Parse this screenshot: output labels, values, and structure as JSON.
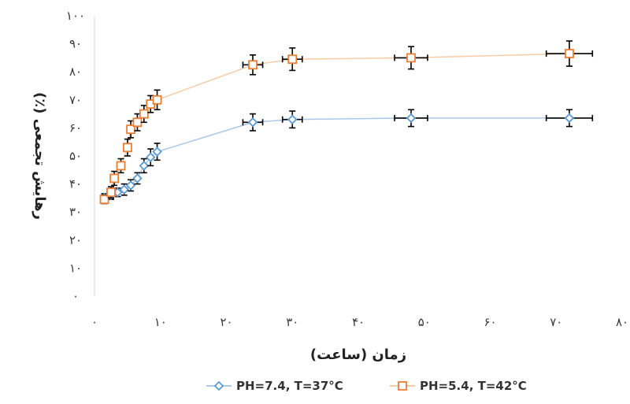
{
  "chart_data": {
    "type": "scatter",
    "xlabel": "زمان (ساعت)",
    "ylabel": "رهایش تجمعی (٪)",
    "xlim": [
      0,
      80
    ],
    "ylim": [
      0,
      100
    ],
    "x_ticks": [
      0,
      10,
      20,
      30,
      40,
      50,
      60,
      70,
      80
    ],
    "y_ticks": [
      0,
      10,
      20,
      30,
      40,
      50,
      60,
      70,
      80,
      90,
      100
    ],
    "x_tick_labels": [
      "۰",
      "۱۰",
      "۲۰",
      "۳۰",
      "۴۰",
      "۵۰",
      "۶۰",
      "۷۰",
      "۸۰"
    ],
    "y_tick_labels": [
      "۰",
      "۱۰",
      "۲۰",
      "۳۰",
      "۴۰",
      "۵۰",
      "۶۰",
      "۷۰",
      "۸۰",
      "۹۰",
      "۱۰۰"
    ],
    "grid": false,
    "legend_position": "bottom",
    "series": [
      {
        "name": "PH=7.4, T=37°C",
        "color": "#5b9bd5",
        "line_color": "#a9c8ea",
        "marker": "diamond",
        "x": [
          1.5,
          2.5,
          3.5,
          4.5,
          5.5,
          6.5,
          7.5,
          8.5,
          9.5,
          24,
          30,
          48,
          72
        ],
        "y": [
          35,
          36,
          37,
          38,
          39.5,
          42,
          46.5,
          49.5,
          51.5,
          62,
          63,
          63.5,
          63.5
        ],
        "y_err": [
          1.5,
          1.5,
          1.5,
          2,
          2,
          2,
          2.5,
          3,
          3,
          3,
          3,
          3,
          3
        ],
        "x_err": [
          0,
          0,
          0,
          0,
          0,
          0,
          0,
          0,
          0,
          1.5,
          1.5,
          2.5,
          3.5
        ]
      },
      {
        "name": "PH=5.4, T=42°C",
        "color": "#ed7d31",
        "line_color": "#f8cba6",
        "marker": "square",
        "x": [
          1.5,
          2.5,
          3.0,
          4.0,
          5.0,
          5.5,
          6.5,
          7.5,
          8.5,
          9.5,
          24,
          30,
          48,
          72
        ],
        "y": [
          34.5,
          37,
          42,
          46.5,
          53,
          59.5,
          62,
          65,
          68.5,
          70,
          82.5,
          84.5,
          85,
          86.5
        ],
        "y_err": [
          1.5,
          2,
          2.5,
          2.5,
          3,
          3,
          3,
          3,
          3,
          3.5,
          3.5,
          4,
          4,
          4.5
        ],
        "x_err": [
          0,
          0,
          0,
          0,
          0,
          0,
          0,
          0,
          0,
          0,
          1.5,
          1.5,
          2.5,
          3.5
        ]
      }
    ]
  }
}
